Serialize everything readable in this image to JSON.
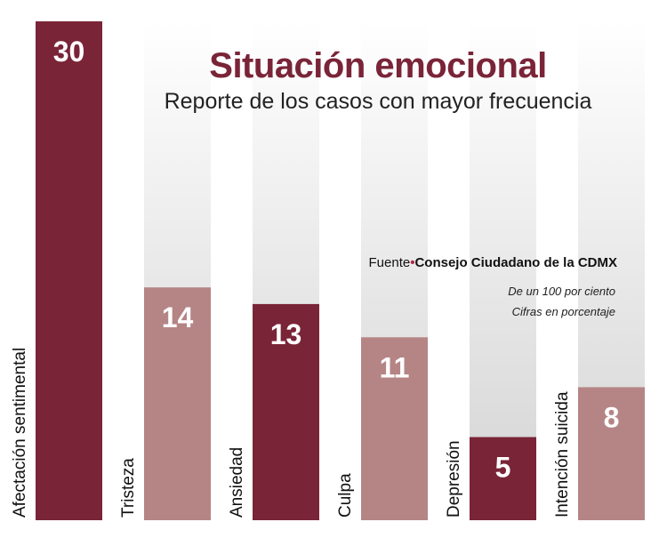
{
  "chart_data": {
    "type": "bar",
    "title": "Situación emocional",
    "subtitle": "Reporte de los casos con mayor frecuencia",
    "categories": [
      "Afectación sentimental",
      "Tristeza",
      "Ansiedad",
      "Culpa",
      "Depresión",
      "Intención suicida"
    ],
    "values": [
      30,
      14,
      13,
      11,
      5,
      8
    ],
    "ylim": [
      0,
      30
    ],
    "xlabel": "",
    "ylabel": "",
    "source_label": "Fuente",
    "source_bullet": "•",
    "source_name": "Consejo Ciudadano de la CDMX",
    "note_1": "De un 100 por ciento",
    "note_2": "Cifras en porcentaje",
    "colors": {
      "dark": "#7a2438",
      "light": "#b58585",
      "track_top": "#ffffff",
      "track_bottom": "#d3d3d3",
      "label_text": "#ffffff",
      "category_text": "#111111"
    },
    "bar_color_order": [
      "dark",
      "light",
      "dark",
      "light",
      "dark",
      "light"
    ]
  }
}
